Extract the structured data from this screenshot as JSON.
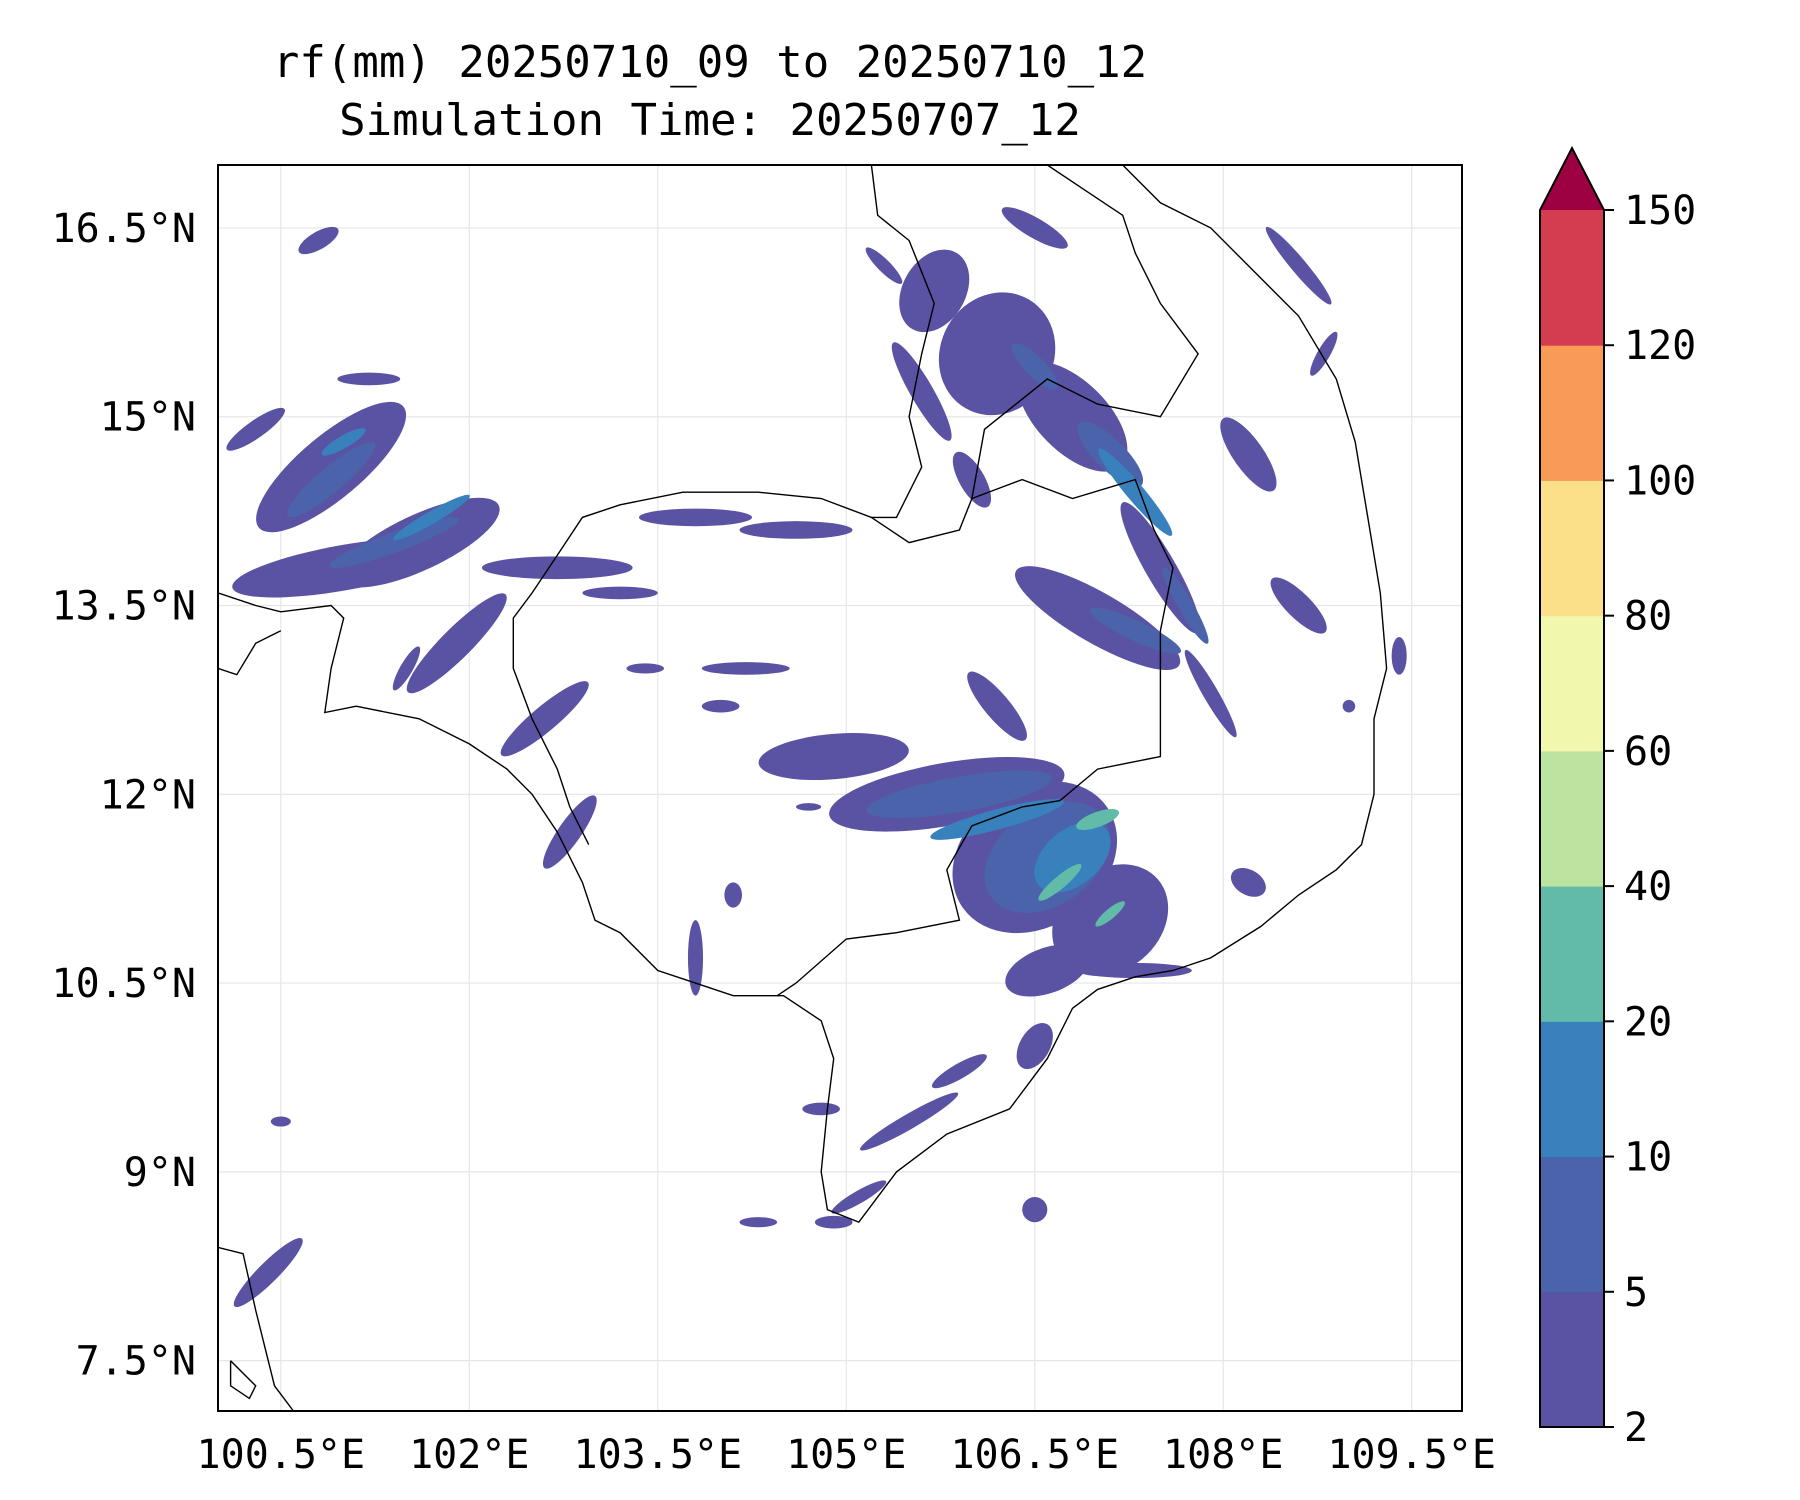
{
  "title": {
    "line1": "rf(mm) 20250710_09 to 20250710_12",
    "line2": "Simulation Time: 20250707_12"
  },
  "map": {
    "lon_range": [
      100.0,
      109.9
    ],
    "lat_range": [
      7.1,
      17.0
    ],
    "lon_ticks": [
      {
        "value": 100.5,
        "label": "100.5°E"
      },
      {
        "value": 102.0,
        "label": "102°E"
      },
      {
        "value": 103.5,
        "label": "103.5°E"
      },
      {
        "value": 105.0,
        "label": "105°E"
      },
      {
        "value": 106.5,
        "label": "106.5°E"
      },
      {
        "value": 108.0,
        "label": "108°E"
      },
      {
        "value": 109.5,
        "label": "109.5°E"
      }
    ],
    "lat_ticks": [
      {
        "value": 16.5,
        "label": "16.5°N"
      },
      {
        "value": 15.0,
        "label": "15°N"
      },
      {
        "value": 13.5,
        "label": "13.5°N"
      },
      {
        "value": 12.0,
        "label": "12°N"
      },
      {
        "value": 10.5,
        "label": "10.5°N"
      },
      {
        "value": 9.0,
        "label": "9°N"
      },
      {
        "value": 7.5,
        "label": "7.5°N"
      }
    ],
    "grid": true
  },
  "colorbar": {
    "levels": [
      {
        "value": 2,
        "label": "2"
      },
      {
        "value": 5,
        "label": "5"
      },
      {
        "value": 10,
        "label": "10"
      },
      {
        "value": 20,
        "label": "20"
      },
      {
        "value": 40,
        "label": "40"
      },
      {
        "value": 60,
        "label": "60"
      },
      {
        "value": 80,
        "label": "80"
      },
      {
        "value": 100,
        "label": "100"
      },
      {
        "value": 120,
        "label": "120"
      },
      {
        "value": 150,
        "label": "150"
      }
    ],
    "colors": [
      "#5a52a3",
      "#4a63ab",
      "#3881bc",
      "#62bba8",
      "#bde3a0",
      "#f1f7ad",
      "#fbdf89",
      "#f99b57",
      "#d43d4f"
    ],
    "extend_color": "#9e0142"
  },
  "rain_areas": [
    {
      "lon": 100.3,
      "lat": 14.9,
      "rx": 0.28,
      "ry": 0.07,
      "rot": -35,
      "level": 0
    },
    {
      "lon": 100.9,
      "lat": 14.6,
      "rx": 0.75,
      "ry": 0.25,
      "rot": -40,
      "level": 0
    },
    {
      "lon": 101.6,
      "lat": 14.0,
      "rx": 0.7,
      "ry": 0.22,
      "rot": -25,
      "level": 0
    },
    {
      "lon": 101.0,
      "lat": 13.8,
      "rx": 0.9,
      "ry": 0.18,
      "rot": -10,
      "level": 0
    },
    {
      "lon": 102.7,
      "lat": 13.8,
      "rx": 0.6,
      "ry": 0.09,
      "rot": 0,
      "level": 0
    },
    {
      "lon": 100.9,
      "lat": 14.5,
      "rx": 0.45,
      "ry": 0.1,
      "rot": -40,
      "level": 1
    },
    {
      "lon": 101.4,
      "lat": 14.0,
      "rx": 0.55,
      "ry": 0.08,
      "rot": -20,
      "level": 1
    },
    {
      "lon": 101.0,
      "lat": 14.8,
      "rx": 0.2,
      "ry": 0.05,
      "rot": -30,
      "level": 2
    },
    {
      "lon": 101.7,
      "lat": 14.2,
      "rx": 0.35,
      "ry": 0.05,
      "rot": -30,
      "level": 2
    },
    {
      "lon": 100.8,
      "lat": 16.4,
      "rx": 0.18,
      "ry": 0.07,
      "rot": -30,
      "level": 0
    },
    {
      "lon": 101.2,
      "lat": 15.3,
      "rx": 0.25,
      "ry": 0.05,
      "rot": 0,
      "level": 0
    },
    {
      "lon": 101.9,
      "lat": 13.2,
      "rx": 0.55,
      "ry": 0.12,
      "rot": -45,
      "level": 0
    },
    {
      "lon": 102.6,
      "lat": 12.6,
      "rx": 0.45,
      "ry": 0.1,
      "rot": -40,
      "level": 0
    },
    {
      "lon": 101.5,
      "lat": 13.0,
      "rx": 0.2,
      "ry": 0.05,
      "rot": -60,
      "level": 0
    },
    {
      "lon": 102.8,
      "lat": 11.7,
      "rx": 0.35,
      "ry": 0.09,
      "rot": -55,
      "level": 0
    },
    {
      "lon": 100.4,
      "lat": 8.2,
      "rx": 0.38,
      "ry": 0.08,
      "rot": -45,
      "level": 0
    },
    {
      "lon": 100.5,
      "lat": 9.4,
      "rx": 0.08,
      "ry": 0.04,
      "rot": 0,
      "level": 0
    },
    {
      "lon": 103.8,
      "lat": 14.2,
      "rx": 0.45,
      "ry": 0.07,
      "rot": 0,
      "level": 0
    },
    {
      "lon": 104.6,
      "lat": 14.1,
      "rx": 0.45,
      "ry": 0.07,
      "rot": 0,
      "level": 0
    },
    {
      "lon": 103.2,
      "lat": 13.6,
      "rx": 0.3,
      "ry": 0.05,
      "rot": 0,
      "level": 0
    },
    {
      "lon": 104.2,
      "lat": 13.0,
      "rx": 0.35,
      "ry": 0.05,
      "rot": 0,
      "level": 0
    },
    {
      "lon": 104.0,
      "lat": 12.7,
      "rx": 0.15,
      "ry": 0.05,
      "rot": 0,
      "level": 0
    },
    {
      "lon": 103.4,
      "lat": 13.0,
      "rx": 0.15,
      "ry": 0.04,
      "rot": 0,
      "level": 0
    },
    {
      "lon": 104.9,
      "lat": 12.3,
      "rx": 0.6,
      "ry": 0.18,
      "rot": -5,
      "level": 0
    },
    {
      "lon": 105.8,
      "lat": 12.0,
      "rx": 0.95,
      "ry": 0.25,
      "rot": -10,
      "level": 0
    },
    {
      "lon": 106.5,
      "lat": 11.5,
      "rx": 0.7,
      "ry": 0.55,
      "rot": -35,
      "level": 0
    },
    {
      "lon": 107.1,
      "lat": 11.0,
      "rx": 0.5,
      "ry": 0.4,
      "rot": -40,
      "level": 0
    },
    {
      "lon": 105.9,
      "lat": 12.0,
      "rx": 0.75,
      "ry": 0.14,
      "rot": -10,
      "level": 1
    },
    {
      "lon": 106.6,
      "lat": 11.5,
      "rx": 0.55,
      "ry": 0.38,
      "rot": -35,
      "level": 1
    },
    {
      "lon": 106.2,
      "lat": 11.8,
      "rx": 0.55,
      "ry": 0.08,
      "rot": -15,
      "level": 2
    },
    {
      "lon": 106.8,
      "lat": 11.5,
      "rx": 0.35,
      "ry": 0.22,
      "rot": -40,
      "level": 2
    },
    {
      "lon": 107.0,
      "lat": 11.8,
      "rx": 0.18,
      "ry": 0.06,
      "rot": -20,
      "level": 3
    },
    {
      "lon": 106.7,
      "lat": 11.3,
      "rx": 0.22,
      "ry": 0.05,
      "rot": -40,
      "level": 3
    },
    {
      "lon": 107.1,
      "lat": 11.05,
      "rx": 0.15,
      "ry": 0.04,
      "rot": -40,
      "level": 3
    },
    {
      "lon": 106.6,
      "lat": 10.6,
      "rx": 0.35,
      "ry": 0.18,
      "rot": -20,
      "level": 0
    },
    {
      "lon": 107.3,
      "lat": 10.6,
      "rx": 0.45,
      "ry": 0.06,
      "rot": 0,
      "level": 0
    },
    {
      "lon": 106.5,
      "lat": 10.0,
      "rx": 0.12,
      "ry": 0.2,
      "rot": 30,
      "level": 0
    },
    {
      "lon": 105.9,
      "lat": 9.8,
      "rx": 0.25,
      "ry": 0.06,
      "rot": -30,
      "level": 0
    },
    {
      "lon": 105.5,
      "lat": 9.4,
      "rx": 0.45,
      "ry": 0.06,
      "rot": -30,
      "level": 0
    },
    {
      "lon": 105.1,
      "lat": 8.8,
      "rx": 0.25,
      "ry": 0.05,
      "rot": -30,
      "level": 0
    },
    {
      "lon": 104.8,
      "lat": 9.5,
      "rx": 0.15,
      "ry": 0.05,
      "rot": 0,
      "level": 0
    },
    {
      "lon": 104.3,
      "lat": 8.6,
      "rx": 0.15,
      "ry": 0.04,
      "rot": 0,
      "level": 0
    },
    {
      "lon": 104.9,
      "lat": 8.6,
      "rx": 0.15,
      "ry": 0.05,
      "rot": 0,
      "level": 0
    },
    {
      "lon": 106.5,
      "lat": 8.7,
      "rx": 0.1,
      "ry": 0.1,
      "rot": 0,
      "level": 0
    },
    {
      "lon": 105.7,
      "lat": 16.0,
      "rx": 0.25,
      "ry": 0.35,
      "rot": 30,
      "level": 0
    },
    {
      "lon": 106.2,
      "lat": 15.5,
      "rx": 0.45,
      "ry": 0.5,
      "rot": 30,
      "level": 0
    },
    {
      "lon": 106.8,
      "lat": 15.0,
      "rx": 0.55,
      "ry": 0.28,
      "rot": 45,
      "level": 0
    },
    {
      "lon": 107.1,
      "lat": 14.7,
      "rx": 0.35,
      "ry": 0.12,
      "rot": 45,
      "level": 1
    },
    {
      "lon": 106.5,
      "lat": 15.4,
      "rx": 0.25,
      "ry": 0.08,
      "rot": 45,
      "level": 1
    },
    {
      "lon": 107.3,
      "lat": 14.4,
      "rx": 0.45,
      "ry": 0.07,
      "rot": 50,
      "level": 2
    },
    {
      "lon": 106.5,
      "lat": 16.5,
      "rx": 0.3,
      "ry": 0.08,
      "rot": 30,
      "level": 0
    },
    {
      "lon": 105.3,
      "lat": 16.2,
      "rx": 0.2,
      "ry": 0.05,
      "rot": 45,
      "level": 0
    },
    {
      "lon": 105.6,
      "lat": 15.2,
      "rx": 0.45,
      "ry": 0.09,
      "rot": 60,
      "level": 0
    },
    {
      "lon": 106.0,
      "lat": 14.5,
      "rx": 0.25,
      "ry": 0.1,
      "rot": 60,
      "level": 0
    },
    {
      "lon": 107.5,
      "lat": 13.8,
      "rx": 0.6,
      "ry": 0.12,
      "rot": 60,
      "level": 0
    },
    {
      "lon": 107.7,
      "lat": 13.5,
      "rx": 0.35,
      "ry": 0.06,
      "rot": 60,
      "level": 1
    },
    {
      "lon": 107.0,
      "lat": 13.4,
      "rx": 0.75,
      "ry": 0.2,
      "rot": 30,
      "level": 0
    },
    {
      "lon": 107.3,
      "lat": 13.3,
      "rx": 0.4,
      "ry": 0.08,
      "rot": 25,
      "level": 1
    },
    {
      "lon": 108.2,
      "lat": 14.7,
      "rx": 0.35,
      "ry": 0.12,
      "rot": 55,
      "level": 0
    },
    {
      "lon": 108.6,
      "lat": 13.5,
      "rx": 0.3,
      "ry": 0.1,
      "rot": 45,
      "level": 0
    },
    {
      "lon": 108.6,
      "lat": 16.2,
      "rx": 0.4,
      "ry": 0.06,
      "rot": 50,
      "level": 0
    },
    {
      "lon": 108.8,
      "lat": 15.5,
      "rx": 0.2,
      "ry": 0.05,
      "rot": -60,
      "level": 0
    },
    {
      "lon": 107.9,
      "lat": 12.8,
      "rx": 0.4,
      "ry": 0.06,
      "rot": 60,
      "level": 0
    },
    {
      "lon": 106.2,
      "lat": 12.7,
      "rx": 0.35,
      "ry": 0.1,
      "rot": 50,
      "level": 0
    },
    {
      "lon": 109.4,
      "lat": 13.1,
      "rx": 0.06,
      "ry": 0.15,
      "rot": 0,
      "level": 0
    },
    {
      "lon": 108.2,
      "lat": 11.3,
      "rx": 0.15,
      "ry": 0.1,
      "rot": 30,
      "level": 0
    },
    {
      "lon": 109.0,
      "lat": 12.7,
      "rx": 0.05,
      "ry": 0.05,
      "rot": 0,
      "level": 0
    },
    {
      "lon": 104.7,
      "lat": 11.9,
      "rx": 0.1,
      "ry": 0.03,
      "rot": 0,
      "level": 0
    },
    {
      "lon": 104.1,
      "lat": 11.2,
      "rx": 0.07,
      "ry": 0.1,
      "rot": 0,
      "level": 0
    },
    {
      "lon": 103.8,
      "lat": 10.7,
      "rx": 0.06,
      "ry": 0.3,
      "rot": 0,
      "level": 0
    }
  ],
  "coastlines": [
    [
      [
        100.0,
        13.6
      ],
      [
        100.3,
        13.5
      ],
      [
        100.5,
        13.45
      ],
      [
        100.9,
        13.5
      ],
      [
        101.0,
        13.4
      ],
      [
        100.9,
        13.0
      ],
      [
        100.85,
        12.65
      ],
      [
        101.1,
        12.7
      ],
      [
        101.6,
        12.6
      ],
      [
        102.0,
        12.4
      ],
      [
        102.3,
        12.2
      ],
      [
        102.5,
        12.0
      ],
      [
        102.7,
        11.7
      ],
      [
        102.9,
        11.3
      ],
      [
        103.0,
        11.0
      ],
      [
        103.2,
        10.9
      ],
      [
        103.5,
        10.6
      ],
      [
        103.8,
        10.5
      ],
      [
        104.1,
        10.4
      ],
      [
        104.5,
        10.4
      ],
      [
        104.8,
        10.2
      ],
      [
        104.9,
        9.9
      ],
      [
        104.85,
        9.5
      ],
      [
        104.8,
        9.0
      ],
      [
        104.85,
        8.7
      ],
      [
        105.1,
        8.6
      ],
      [
        105.4,
        9.0
      ],
      [
        105.8,
        9.3
      ],
      [
        106.3,
        9.5
      ],
      [
        106.6,
        9.9
      ],
      [
        106.8,
        10.3
      ],
      [
        107.0,
        10.45
      ],
      [
        107.3,
        10.55
      ],
      [
        107.6,
        10.6
      ],
      [
        107.9,
        10.7
      ],
      [
        108.3,
        10.95
      ],
      [
        108.6,
        11.2
      ],
      [
        108.9,
        11.4
      ],
      [
        109.1,
        11.6
      ],
      [
        109.2,
        12.0
      ],
      [
        109.2,
        12.6
      ],
      [
        109.3,
        13.0
      ],
      [
        109.25,
        13.6
      ],
      [
        109.15,
        14.2
      ],
      [
        109.05,
        14.8
      ],
      [
        108.9,
        15.3
      ],
      [
        108.6,
        15.8
      ],
      [
        108.3,
        16.1
      ],
      [
        107.9,
        16.5
      ],
      [
        107.5,
        16.7
      ],
      [
        107.2,
        17.0
      ]
    ],
    [
      [
        100.0,
        8.4
      ],
      [
        100.2,
        8.35
      ],
      [
        100.3,
        7.9
      ],
      [
        100.45,
        7.3
      ],
      [
        100.6,
        7.1
      ]
    ],
    [
      [
        100.1,
        7.5
      ],
      [
        100.2,
        7.4
      ],
      [
        100.3,
        7.3
      ],
      [
        100.25,
        7.2
      ],
      [
        100.1,
        7.3
      ],
      [
        100.1,
        7.5
      ]
    ]
  ],
  "borders": [
    [
      [
        105.2,
        17.0
      ],
      [
        105.25,
        16.6
      ],
      [
        105.5,
        16.4
      ],
      [
        105.7,
        15.9
      ],
      [
        105.6,
        15.5
      ],
      [
        105.5,
        15.0
      ],
      [
        105.6,
        14.6
      ],
      [
        105.4,
        14.2
      ],
      [
        105.2,
        14.2
      ],
      [
        104.8,
        14.35
      ],
      [
        104.3,
        14.4
      ],
      [
        103.7,
        14.4
      ],
      [
        103.2,
        14.3
      ],
      [
        102.9,
        14.2
      ],
      [
        102.7,
        13.9
      ],
      [
        102.5,
        13.6
      ],
      [
        102.35,
        13.4
      ],
      [
        102.35,
        13.0
      ],
      [
        102.5,
        12.6
      ],
      [
        102.7,
        12.2
      ],
      [
        102.8,
        11.9
      ],
      [
        102.95,
        11.6
      ]
    ],
    [
      [
        105.2,
        14.2
      ],
      [
        105.5,
        14.0
      ],
      [
        105.9,
        14.1
      ],
      [
        106.0,
        14.35
      ],
      [
        106.4,
        14.5
      ],
      [
        106.8,
        14.35
      ],
      [
        107.3,
        14.5
      ],
      [
        107.45,
        14.1
      ],
      [
        107.6,
        13.8
      ],
      [
        107.5,
        13.3
      ],
      [
        107.5,
        12.6
      ],
      [
        107.5,
        12.3
      ],
      [
        107.0,
        12.2
      ],
      [
        106.7,
        11.95
      ],
      [
        106.4,
        11.9
      ],
      [
        106.0,
        11.75
      ],
      [
        105.8,
        11.4
      ],
      [
        105.9,
        11.0
      ],
      [
        105.4,
        10.9
      ],
      [
        105.0,
        10.85
      ],
      [
        104.6,
        10.5
      ],
      [
        104.45,
        10.4
      ]
    ],
    [
      [
        106.0,
        14.35
      ],
      [
        106.1,
        14.9
      ],
      [
        106.6,
        15.3
      ],
      [
        107.0,
        15.1
      ],
      [
        107.5,
        15.0
      ],
      [
        107.8,
        15.5
      ],
      [
        107.5,
        15.9
      ],
      [
        107.3,
        16.3
      ],
      [
        107.2,
        16.6
      ],
      [
        106.9,
        16.8
      ],
      [
        106.6,
        17.0
      ]
    ],
    [
      [
        100.0,
        13.0
      ],
      [
        100.15,
        12.95
      ],
      [
        100.3,
        13.2
      ],
      [
        100.5,
        13.3
      ]
    ]
  ]
}
